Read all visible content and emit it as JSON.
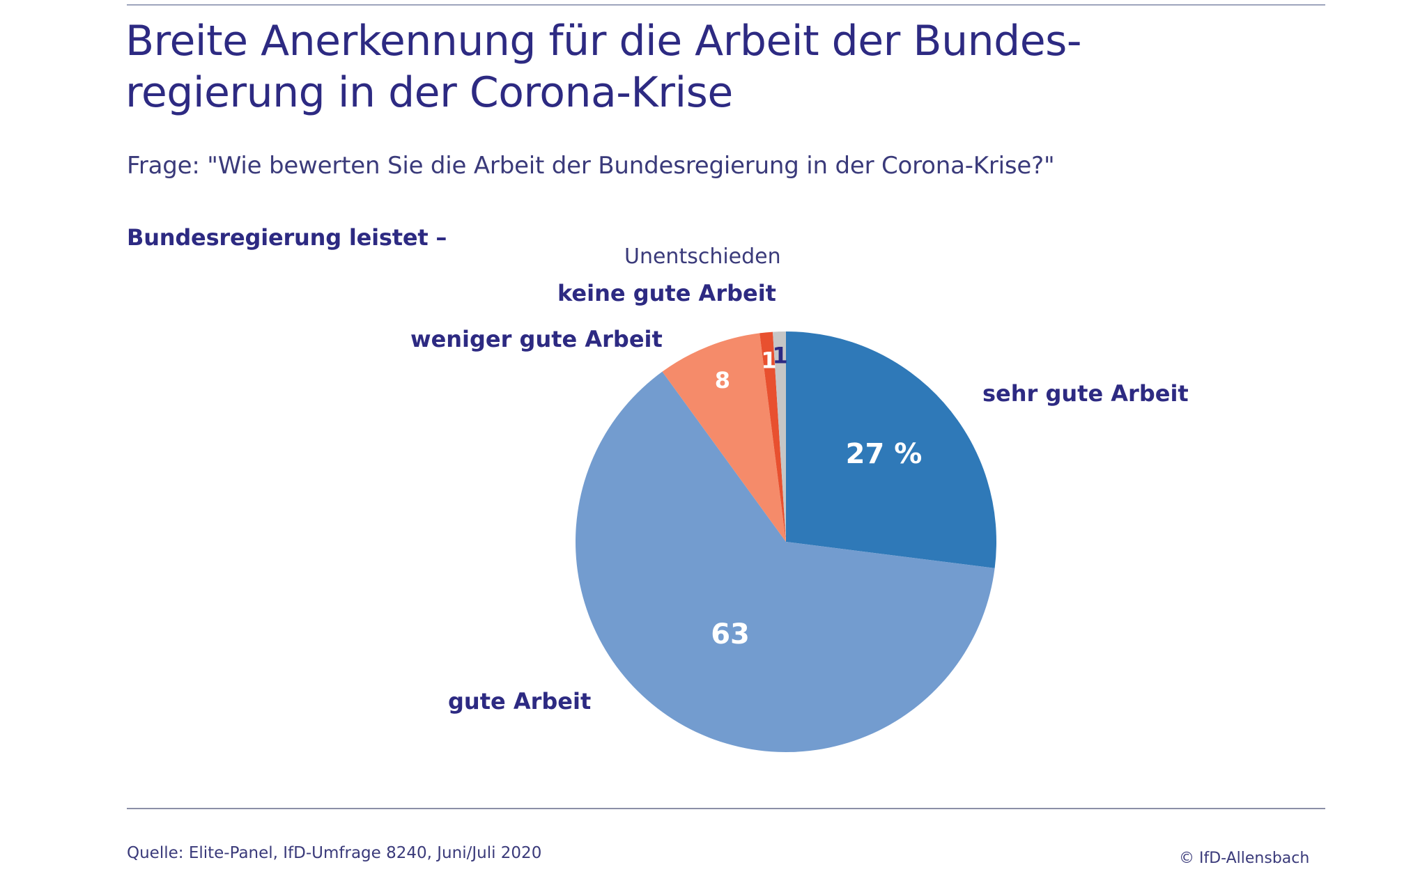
{
  "header": {
    "title_line1": "Breite Anerkennung für die Arbeit der Bundes-",
    "title_line2": "regierung in der Corona-Krise",
    "question": "Frage: \"Wie bewerten Sie die Arbeit der Bundesregierung in der Corona-Krise?\"",
    "section_label": "Bundesregierung leistet –"
  },
  "chart_data": {
    "type": "pie",
    "unit": "%",
    "start_angle_deg": 0,
    "direction": "clockwise",
    "slices": [
      {
        "label": "sehr gute Arbeit",
        "value": 27,
        "value_label": "27 %",
        "color": "#2f79b8"
      },
      {
        "label": "gute Arbeit",
        "value": 63,
        "value_label": "63",
        "color": "#739ccf"
      },
      {
        "label": "weniger gute Arbeit",
        "value": 8,
        "value_label": "8",
        "color": "#f58b6a"
      },
      {
        "label": "keine gute Arbeit",
        "value": 1,
        "value_label": "1",
        "color": "#e8502f"
      },
      {
        "label": "Unentschieden",
        "value": 1,
        "value_label": "1",
        "color": "#c6c6c6"
      }
    ]
  },
  "footer": {
    "source": "Quelle: Elite-Panel, IfD-Umfrage 8240, Juni/Juli 2020",
    "copyright": "© IfD-Allensbach"
  }
}
